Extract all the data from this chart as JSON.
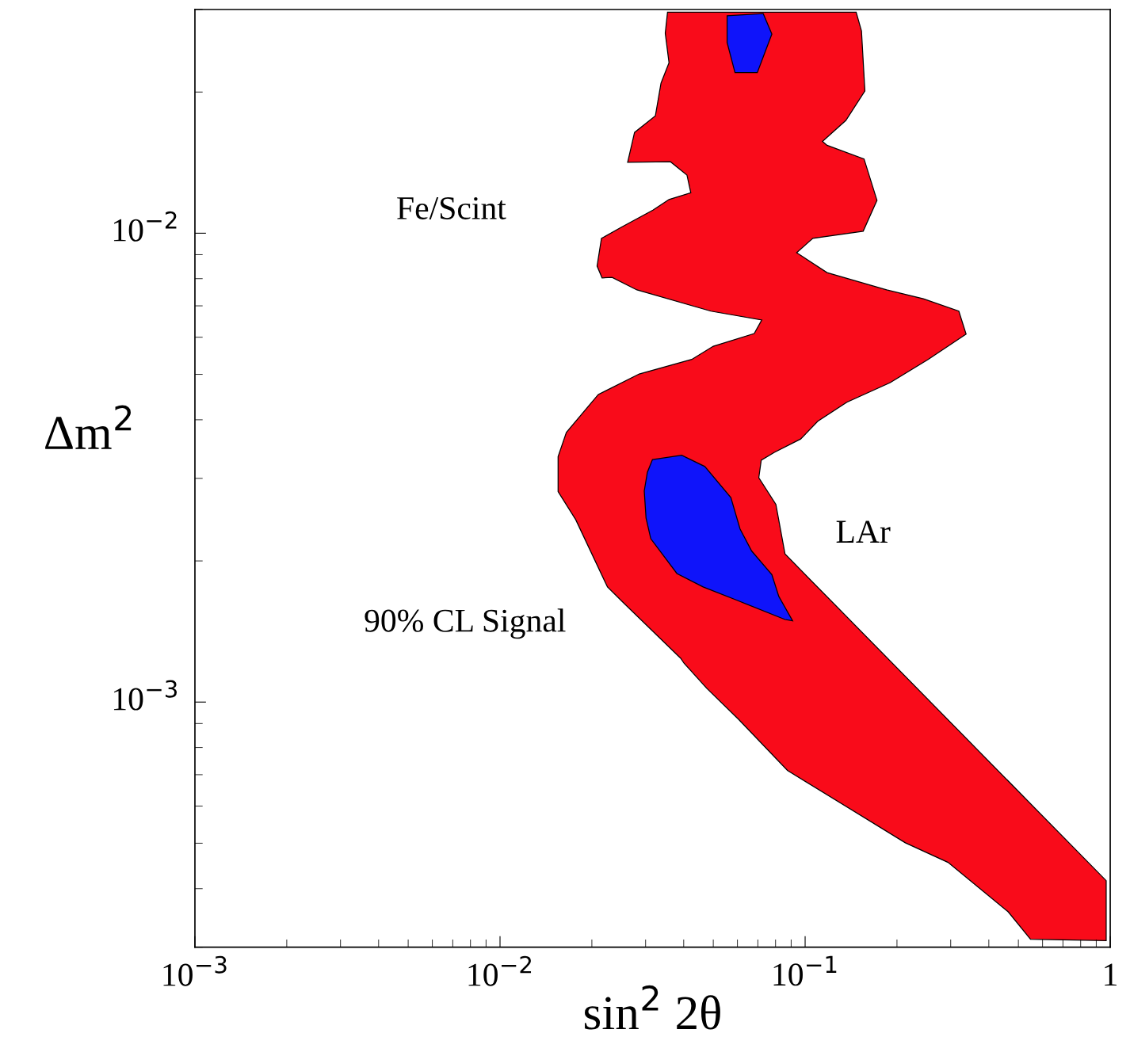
{
  "chart_data": {
    "type": "area",
    "xlabel": "sin$^{2}$ 2θ",
    "ylabel": "Δm$^{2}$",
    "log": "xy",
    "grid": false,
    "xlim": [
      0.001,
      1
    ],
    "ylim": [
      0.0003,
      0.03
    ],
    "xticks": [
      {
        "value": 0.001,
        "label": "10$^{−3}$"
      },
      {
        "value": 0.01,
        "label": "10$^{−2}$"
      },
      {
        "value": 0.1,
        "label": "10$^{−1}$"
      },
      1
    ],
    "yticks": [
      {
        "value": 0.001,
        "label": "10$^{−3}$"
      },
      {
        "value": 0.01,
        "label": "10$^{−2}$"
      }
    ],
    "annotations": [
      "Fe/Scint",
      "90% CL Signal",
      "LAr"
    ],
    "series": [
      {
        "color": "#f90b1a",
        "x": [
          0.0354,
          0.147,
          0.153,
          0.157,
          0.136,
          0.114,
          0.118,
          0.156,
          0.172,
          0.155,
          0.106,
          0.0938,
          0.118,
          0.185,
          0.244,
          0.319,
          0.337,
          0.253,
          0.19,
          0.137,
          0.11,
          0.0967,
          0.0793,
          0.0718,
          0.0705,
          0.0802,
          0.0859,
          0.97,
          0.97,
          0.548,
          0.463,
          0.294,
          0.213,
          0.0875,
          0.0605,
          0.0476,
          0.0401,
          0.0391,
          0.0256,
          0.0225,
          0.0177,
          0.0155,
          0.0155,
          0.0165,
          0.021,
          0.0286,
          0.0425,
          0.05,
          0.0681,
          0.0721,
          0.0491,
          0.0281,
          0.0233,
          0.0216,
          0.0208,
          0.0215,
          0.025,
          0.0317,
          0.0358,
          0.0422,
          0.041,
          0.0362,
          0.0262,
          0.0276,
          0.0323,
          0.0337,
          0.0358,
          0.0348
        ],
        "values": [
          0.0296,
          0.0296,
          0.027,
          0.0201,
          0.0174,
          0.0157,
          0.0154,
          0.0144,
          0.01175,
          0.0101,
          0.00975,
          0.00909,
          0.00824,
          0.00757,
          0.00725,
          0.00682,
          0.00609,
          0.00538,
          0.0048,
          0.00436,
          0.00397,
          0.00364,
          0.00341,
          0.00328,
          0.00301,
          0.00264,
          0.00207,
          0.000416,
          0.00031,
          0.000312,
          0.000357,
          0.000455,
          0.000501,
          0.000715,
          0.000919,
          0.00107,
          0.00121,
          0.00124,
          0.00162,
          0.00176,
          0.00245,
          0.00281,
          0.00334,
          0.00376,
          0.00453,
          0.00501,
          0.00538,
          0.00574,
          0.00611,
          0.00653,
          0.00682,
          0.00757,
          0.00805,
          0.00803,
          0.00851,
          0.00975,
          0.0103,
          0.0112,
          0.0118,
          0.0122,
          0.0133,
          0.0142,
          0.01416,
          0.0164,
          0.0178,
          0.0209,
          0.0231,
          0.0267
        ]
      },
      {
        "color": "#0f14fa",
        "x": [
          0.0555,
          0.0729,
          0.0778,
          0.0697,
          0.0589,
          0.0555
        ],
        "values": [
          0.0291,
          0.0294,
          0.0266,
          0.022,
          0.022,
          0.0255
        ]
      },
      {
        "color": "#0f14fa",
        "x": [
          0.0316,
          0.0394,
          0.0469,
          0.0571,
          0.0612,
          0.0668,
          0.0778,
          0.082,
          0.091,
          0.0859,
          0.0596,
          0.0463,
          0.038,
          0.0312,
          0.0301,
          0.0297,
          0.0304
        ],
        "values": [
          0.00329,
          0.00336,
          0.00318,
          0.00273,
          0.00234,
          0.0021,
          0.00187,
          0.00168,
          0.00149,
          0.0015,
          0.00165,
          0.00176,
          0.00188,
          0.00223,
          0.00247,
          0.00282,
          0.00309
        ]
      }
    ]
  }
}
